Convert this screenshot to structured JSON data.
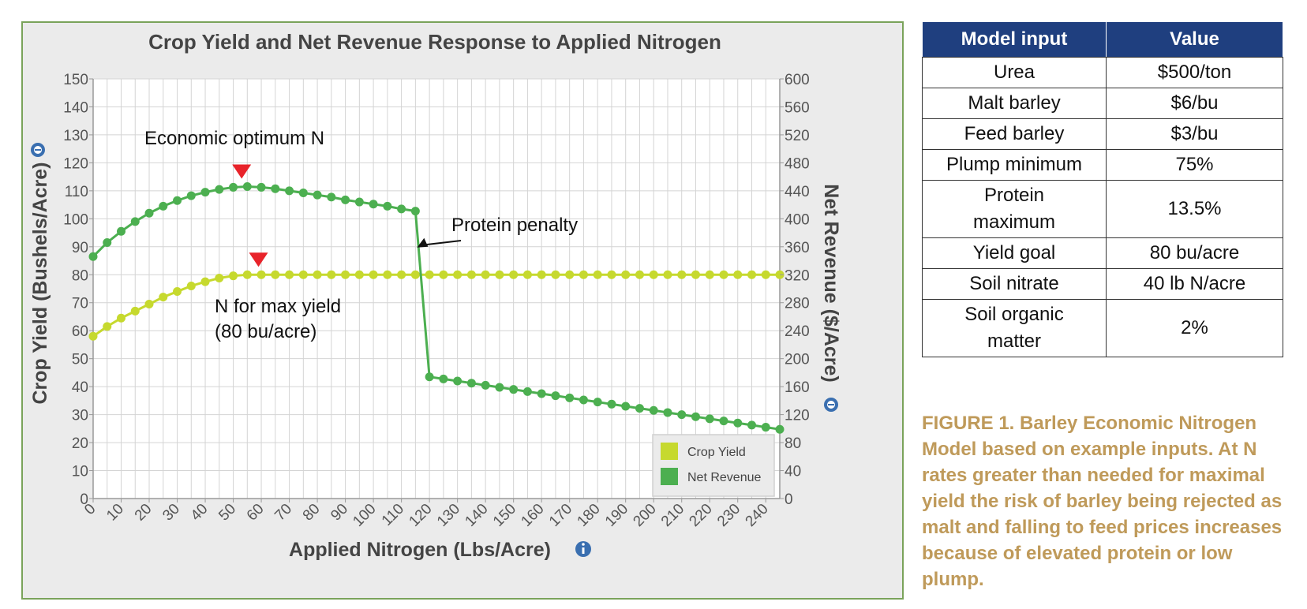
{
  "chart_data": {
    "type": "line",
    "title": "Crop Yield and Net Revenue Response to Applied Nitrogen",
    "xlabel": "Applied Nitrogen (Lbs/Acre)",
    "ylabel": "Crop Yield (Bushels/Acre)",
    "y2label": "Net Revenue ($/Acre)",
    "xlim": [
      0,
      245
    ],
    "ylim": [
      0,
      150
    ],
    "y2lim": [
      0,
      600
    ],
    "x_ticks": [
      0,
      10,
      20,
      30,
      40,
      50,
      60,
      70,
      80,
      90,
      100,
      110,
      120,
      130,
      140,
      150,
      160,
      170,
      180,
      190,
      200,
      210,
      220,
      230,
      240
    ],
    "y_ticks": [
      0,
      10,
      20,
      30,
      40,
      50,
      60,
      70,
      80,
      90,
      100,
      110,
      120,
      130,
      140,
      150
    ],
    "y2_ticks": [
      0,
      40,
      80,
      120,
      160,
      200,
      240,
      280,
      320,
      360,
      400,
      440,
      480,
      520,
      560,
      600
    ],
    "grid": true,
    "legend_position": "bottom-right",
    "series": [
      {
        "name": "Crop Yield",
        "axis": "left",
        "color": "#c6d92e",
        "x": [
          0,
          5,
          10,
          15,
          20,
          25,
          30,
          35,
          40,
          45,
          50,
          55,
          60,
          65,
          70,
          75,
          80,
          85,
          90,
          95,
          100,
          105,
          110,
          115,
          120,
          125,
          130,
          135,
          140,
          145,
          150,
          155,
          160,
          165,
          170,
          175,
          180,
          185,
          190,
          195,
          200,
          205,
          210,
          215,
          220,
          225,
          230,
          235,
          240,
          245
        ],
        "values": [
          58,
          61.5,
          64.5,
          67,
          69.5,
          72,
          74,
          76,
          77.5,
          78.8,
          79.6,
          80,
          80,
          80,
          80,
          80,
          80,
          80,
          80,
          80,
          80,
          80,
          80,
          80,
          80,
          80,
          80,
          80,
          80,
          80,
          80,
          80,
          80,
          80,
          80,
          80,
          80,
          80,
          80,
          80,
          80,
          80,
          80,
          80,
          80,
          80,
          80,
          80,
          80,
          80
        ]
      },
      {
        "name": "Net Revenue",
        "axis": "right",
        "color": "#4caf50",
        "x": [
          0,
          5,
          10,
          15,
          20,
          25,
          30,
          35,
          40,
          45,
          50,
          55,
          60,
          65,
          70,
          75,
          80,
          85,
          90,
          95,
          100,
          105,
          110,
          115,
          120,
          125,
          130,
          135,
          140,
          145,
          150,
          155,
          160,
          165,
          170,
          175,
          180,
          185,
          190,
          195,
          200,
          205,
          210,
          215,
          220,
          225,
          230,
          235,
          240,
          245
        ],
        "values": [
          346,
          366,
          382,
          396,
          408,
          418,
          426,
          433,
          438,
          442,
          445,
          446,
          445,
          443,
          440,
          437,
          434,
          431,
          427,
          424,
          421,
          418,
          414,
          411,
          174,
          171,
          168,
          165,
          162,
          159,
          156,
          153,
          150,
          147,
          144,
          141,
          138,
          135,
          132,
          129,
          126,
          123,
          120,
          117,
          114,
          111,
          108,
          105,
          102,
          99
        ]
      }
    ],
    "annotations": [
      {
        "text": "Economic optimum N",
        "marker_x": 53,
        "marker_axis": "right",
        "marker_y": 446
      },
      {
        "text": "N for max yield",
        "text2": "(80 bu/acre)",
        "marker_x": 59,
        "marker_axis": "left",
        "marker_y": 80
      },
      {
        "text": "Protein penalty",
        "arrow_x": 115,
        "arrow_y": 90
      }
    ],
    "marker_color": "#e8232a"
  },
  "table": {
    "headers": [
      "Model input",
      "Value"
    ],
    "rows": [
      [
        "Urea",
        "$500/ton"
      ],
      [
        "Malt barley",
        "$6/bu"
      ],
      [
        "Feed barley",
        "$3/bu"
      ],
      [
        "Plump minimum",
        "75%"
      ],
      [
        "Protein maximum",
        "13.5%"
      ],
      [
        "Yield goal",
        "80 bu/acre"
      ],
      [
        "Soil nitrate",
        "40 lb N/acre"
      ],
      [
        "Soil organic matter",
        "2%"
      ]
    ]
  },
  "caption": "FIGURE 1. Barley Economic Nitrogen Model based on example inputs. At N rates greater than needed for maximal yield the risk of barley being rejected as malt and falling to feed prices increases because of elevated protein or low plump.",
  "icons": {
    "yaxis_info": "info-icon",
    "y2axis_info": "info-icon",
    "xaxis_info": "info-icon"
  }
}
